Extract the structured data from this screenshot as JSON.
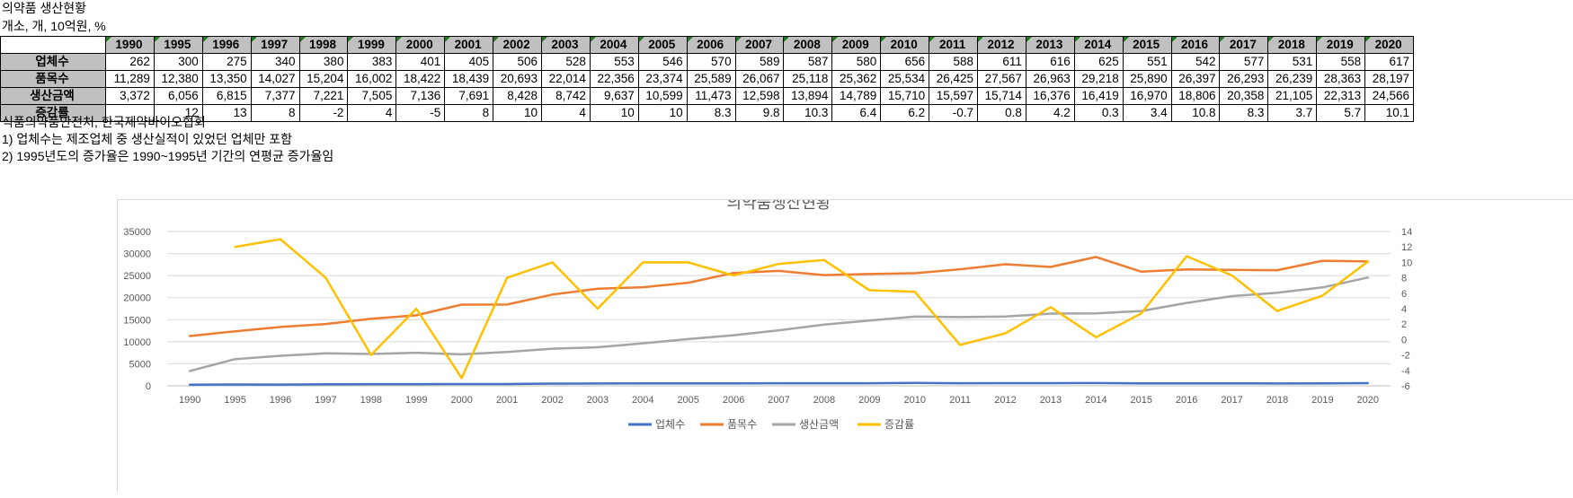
{
  "title": "의약품 생산현황",
  "unit": "개소, 개, 10억원, %",
  "table": {
    "years": [
      "1990",
      "1995",
      "1996",
      "1997",
      "1998",
      "1999",
      "2000",
      "2001",
      "2002",
      "2003",
      "2004",
      "2005",
      "2006",
      "2007",
      "2008",
      "2009",
      "2010",
      "2011",
      "2012",
      "2013",
      "2014",
      "2015",
      "2016",
      "2017",
      "2018",
      "2019",
      "2020"
    ],
    "rows": [
      {
        "label": "업체수",
        "values": [
          "262",
          "300",
          "275",
          "340",
          "380",
          "383",
          "401",
          "405",
          "506",
          "528",
          "553",
          "546",
          "570",
          "589",
          "587",
          "580",
          "656",
          "588",
          "611",
          "616",
          "625",
          "551",
          "542",
          "577",
          "531",
          "558",
          "617"
        ]
      },
      {
        "label": "품목수",
        "values": [
          "11,289",
          "12,380",
          "13,350",
          "14,027",
          "15,204",
          "16,002",
          "18,422",
          "18,439",
          "20,693",
          "22,014",
          "22,356",
          "23,374",
          "25,589",
          "26,067",
          "25,118",
          "25,362",
          "25,534",
          "26,425",
          "27,567",
          "26,963",
          "29,218",
          "25,890",
          "26,397",
          "26,293",
          "26,239",
          "28,363",
          "28,197"
        ]
      },
      {
        "label": "생산금액",
        "values": [
          "3,372",
          "6,056",
          "6,815",
          "7,377",
          "7,221",
          "7,505",
          "7,136",
          "7,691",
          "8,428",
          "8,742",
          "9,637",
          "10,599",
          "11,473",
          "12,598",
          "13,894",
          "14,789",
          "15,710",
          "15,597",
          "15,714",
          "16,376",
          "16,419",
          "16,970",
          "18,806",
          "20,358",
          "21,105",
          "22,313",
          "24,566"
        ]
      },
      {
        "label": "증감률",
        "values": [
          "",
          "12",
          "13",
          "8",
          "-2",
          "4",
          "-5",
          "8",
          "10",
          "4",
          "10",
          "10",
          "8.3",
          "9.8",
          "10.3",
          "6.4",
          "6.2",
          "-0.7",
          "0.8",
          "4.2",
          "0.3",
          "3.4",
          "10.8",
          "8.3",
          "3.7",
          "5.7",
          "10.1"
        ]
      }
    ]
  },
  "notes": [
    "식품의약품안전처, 한국제약바이오협회",
    "1) 업체수는 제조업체 중 생산실적이 있었던 업체만 포함",
    "2) 1995년도의 증가율은 1990~1995년 기간의 연평균 증가율임"
  ],
  "chart_data": {
    "type": "line",
    "title": "의약품생산현황",
    "x": [
      "1990",
      "1995",
      "1996",
      "1997",
      "1998",
      "1999",
      "2000",
      "2001",
      "2002",
      "2003",
      "2004",
      "2005",
      "2006",
      "2007",
      "2008",
      "2009",
      "2010",
      "2011",
      "2012",
      "2013",
      "2014",
      "2015",
      "2016",
      "2017",
      "2018",
      "2019",
      "2020"
    ],
    "y_left": {
      "min": 0,
      "max": 35000,
      "step": 5000,
      "ticks": [
        "0",
        "5000",
        "10000",
        "15000",
        "20000",
        "25000",
        "30000",
        "35000"
      ]
    },
    "y_right": {
      "min": -6,
      "max": 14,
      "step": 2,
      "ticks": [
        "-6",
        "-4",
        "-2",
        "0",
        "2",
        "4",
        "6",
        "8",
        "10",
        "12",
        "14"
      ]
    },
    "grid": true,
    "legend_position": "bottom",
    "series": [
      {
        "name": "업체수",
        "axis": "left",
        "color": "#4472c4",
        "values": [
          262,
          300,
          275,
          340,
          380,
          383,
          401,
          405,
          506,
          528,
          553,
          546,
          570,
          589,
          587,
          580,
          656,
          588,
          611,
          616,
          625,
          551,
          542,
          577,
          531,
          558,
          617
        ]
      },
      {
        "name": "품목수",
        "axis": "left",
        "color": "#ed7d31",
        "values": [
          11289,
          12380,
          13350,
          14027,
          15204,
          16002,
          18422,
          18439,
          20693,
          22014,
          22356,
          23374,
          25589,
          26067,
          25118,
          25362,
          25534,
          26425,
          27567,
          26963,
          29218,
          25890,
          26397,
          26293,
          26239,
          28363,
          28197
        ]
      },
      {
        "name": "생산금액",
        "axis": "left",
        "color": "#a5a5a5",
        "values": [
          3372,
          6056,
          6815,
          7377,
          7221,
          7505,
          7136,
          7691,
          8428,
          8742,
          9637,
          10599,
          11473,
          12598,
          13894,
          14789,
          15710,
          15597,
          15714,
          16376,
          16419,
          16970,
          18806,
          20358,
          21105,
          22313,
          24566
        ]
      },
      {
        "name": "증감률",
        "axis": "right",
        "color": "#ffc000",
        "values": [
          null,
          12,
          13,
          8,
          -2,
          4,
          -5,
          8,
          10,
          4,
          10,
          10,
          8.3,
          9.8,
          10.3,
          6.4,
          6.2,
          -0.7,
          0.8,
          4.2,
          0.3,
          3.4,
          10.8,
          8.3,
          3.7,
          5.7,
          10.1
        ]
      }
    ]
  }
}
